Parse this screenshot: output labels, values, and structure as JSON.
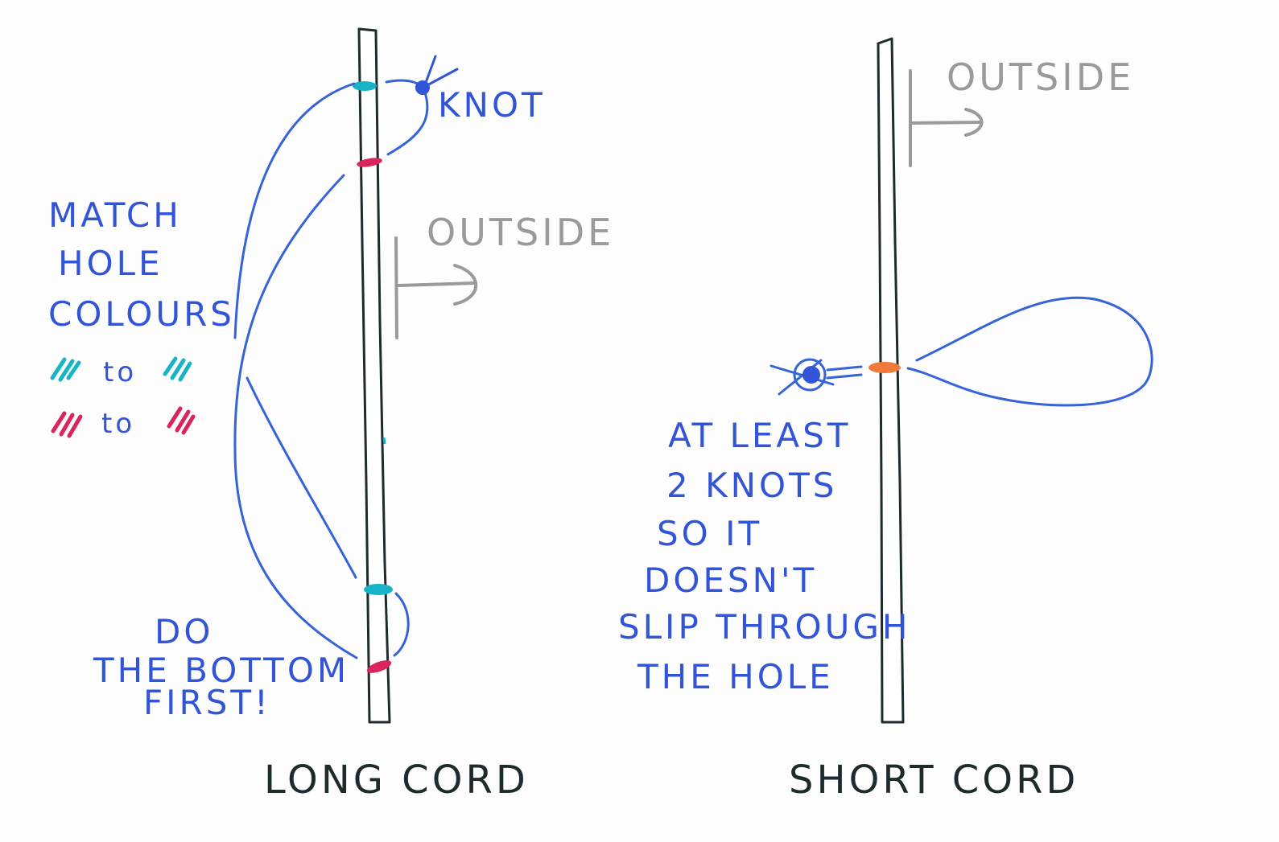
{
  "colors": {
    "cord": "#3563d8",
    "teal": "#19b3c7",
    "red": "#d9245c",
    "orange": "#f07a3c",
    "grey": "#9a9a9a",
    "ink": "#1f2a2c"
  },
  "long_cord": {
    "label": "LONG CORD",
    "knot_label": "KNOT",
    "outside_label": "OUTSIDE",
    "instructions": [
      "MATCH",
      "HOLE",
      "COLOURS"
    ],
    "legend": [
      {
        "word": "to",
        "color": "teal"
      },
      {
        "word": "to",
        "color": "red"
      }
    ],
    "bottom_note": [
      "DO",
      "THE BOTTOM",
      "FIRST!"
    ]
  },
  "short_cord": {
    "label": "SHORT CORD",
    "outside_label": "OUTSIDE",
    "note": [
      "AT LEAST",
      "2 KNOTS",
      "SO IT",
      "DOESN'T",
      "SLIP THROUGH",
      "THE HOLE"
    ]
  }
}
